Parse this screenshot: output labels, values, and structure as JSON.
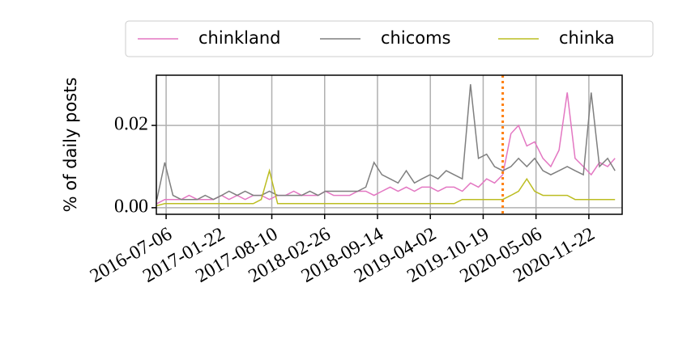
{
  "chart_data": {
    "type": "line",
    "y_label": "% of daily posts",
    "x": [
      "2016-06-01",
      "2016-07-01",
      "2016-08-01",
      "2016-09-01",
      "2016-10-01",
      "2016-11-01",
      "2016-12-01",
      "2017-01-01",
      "2017-02-01",
      "2017-03-01",
      "2017-04-01",
      "2017-05-01",
      "2017-06-01",
      "2017-07-01",
      "2017-08-01",
      "2017-09-01",
      "2017-10-01",
      "2017-11-01",
      "2017-12-01",
      "2018-01-01",
      "2018-02-01",
      "2018-03-01",
      "2018-04-01",
      "2018-05-01",
      "2018-06-01",
      "2018-07-01",
      "2018-08-01",
      "2018-09-01",
      "2018-10-01",
      "2018-11-01",
      "2018-12-01",
      "2019-01-01",
      "2019-02-01",
      "2019-03-01",
      "2019-04-01",
      "2019-05-01",
      "2019-06-01",
      "2019-07-01",
      "2019-08-01",
      "2019-09-01",
      "2019-10-01",
      "2019-11-01",
      "2019-12-01",
      "2020-01-01",
      "2020-02-01",
      "2020-03-01",
      "2020-04-01",
      "2020-05-01",
      "2020-06-01",
      "2020-07-01",
      "2020-08-01",
      "2020-09-01",
      "2020-10-01",
      "2020-11-01",
      "2020-12-01",
      "2021-01-01",
      "2021-02-01",
      "2021-03-01"
    ],
    "series": [
      {
        "name": "chinkland",
        "color": "#e377c2",
        "values": [
          0.001,
          0.002,
          0.002,
          0.002,
          0.003,
          0.002,
          0.002,
          0.002,
          0.003,
          0.002,
          0.003,
          0.002,
          0.003,
          0.003,
          0.002,
          0.003,
          0.003,
          0.004,
          0.003,
          0.003,
          0.003,
          0.004,
          0.003,
          0.003,
          0.003,
          0.004,
          0.004,
          0.003,
          0.004,
          0.005,
          0.004,
          0.005,
          0.004,
          0.005,
          0.005,
          0.004,
          0.005,
          0.005,
          0.004,
          0.006,
          0.005,
          0.007,
          0.006,
          0.008,
          0.018,
          0.02,
          0.015,
          0.016,
          0.012,
          0.01,
          0.014,
          0.028,
          0.012,
          0.01,
          0.008,
          0.011,
          0.01,
          0.012
        ]
      },
      {
        "name": "chicoms",
        "color": "#7f7f7f",
        "values": [
          0.002,
          0.011,
          0.003,
          0.002,
          0.002,
          0.002,
          0.003,
          0.002,
          0.003,
          0.004,
          0.003,
          0.004,
          0.003,
          0.003,
          0.004,
          0.003,
          0.003,
          0.003,
          0.003,
          0.004,
          0.003,
          0.004,
          0.004,
          0.004,
          0.004,
          0.004,
          0.005,
          0.011,
          0.008,
          0.007,
          0.006,
          0.009,
          0.006,
          0.007,
          0.008,
          0.007,
          0.009,
          0.008,
          0.007,
          0.03,
          0.012,
          0.013,
          0.01,
          0.009,
          0.01,
          0.012,
          0.01,
          0.012,
          0.009,
          0.008,
          0.009,
          0.01,
          0.009,
          0.008,
          0.028,
          0.01,
          0.012,
          0.009
        ]
      },
      {
        "name": "chinka",
        "color": "#bcbd22",
        "values": [
          0.0005,
          0.001,
          0.001,
          0.001,
          0.001,
          0.001,
          0.001,
          0.001,
          0.001,
          0.001,
          0.001,
          0.001,
          0.001,
          0.002,
          0.009,
          0.001,
          0.001,
          0.001,
          0.001,
          0.001,
          0.001,
          0.001,
          0.001,
          0.001,
          0.001,
          0.001,
          0.001,
          0.001,
          0.001,
          0.001,
          0.001,
          0.001,
          0.001,
          0.001,
          0.001,
          0.001,
          0.001,
          0.001,
          0.002,
          0.002,
          0.002,
          0.002,
          0.002,
          0.002,
          0.003,
          0.004,
          0.007,
          0.004,
          0.003,
          0.003,
          0.003,
          0.003,
          0.002,
          0.002,
          0.002,
          0.002,
          0.002,
          0.002
        ]
      }
    ],
    "vline": {
      "x": "2020-01-01",
      "color": "#ff7f0e"
    },
    "xlim": [
      "2016-05-30",
      "2021-03-28"
    ],
    "xticks": [
      "2016-07-06",
      "2017-01-22",
      "2017-08-10",
      "2018-02-26",
      "2018-09-14",
      "2019-04-02",
      "2019-10-19",
      "2020-05-06",
      "2020-11-22"
    ],
    "ylim": [
      -0.0016,
      0.0322
    ],
    "yticks": [
      {
        "value": 0,
        "label": "0.00"
      },
      {
        "value": 0.02,
        "label": "0.02"
      }
    ],
    "grid": true
  }
}
